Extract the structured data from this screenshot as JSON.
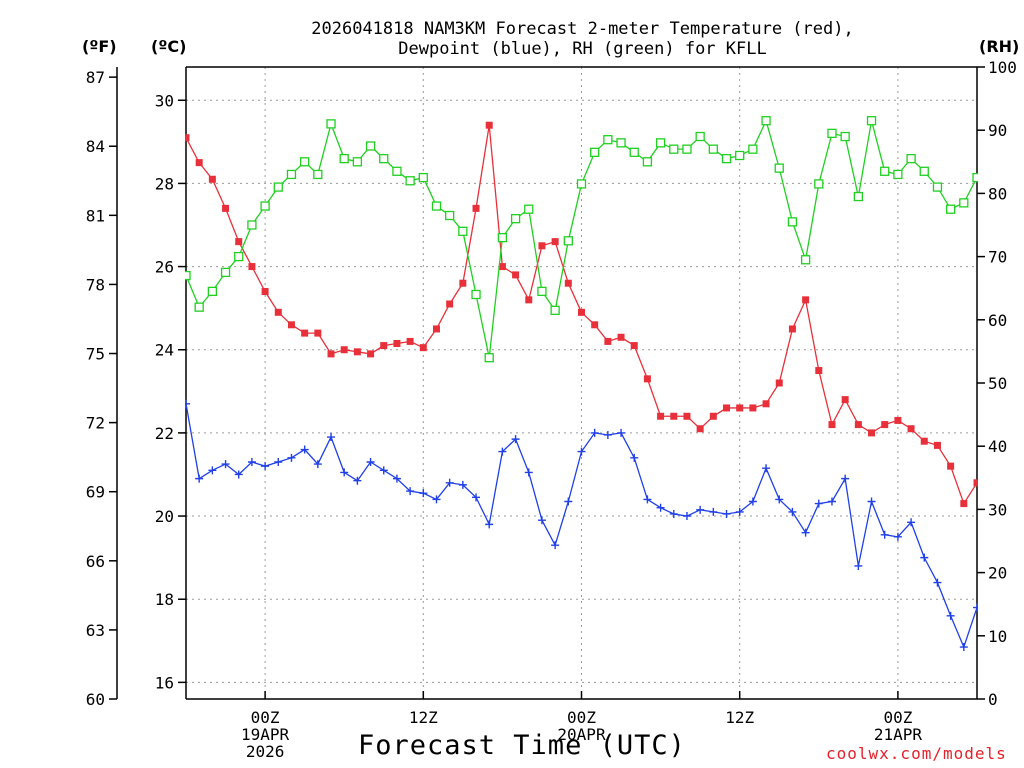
{
  "title": {
    "line1": "2026041818 NAM3KM Forecast 2-meter Temperature (red),",
    "line2": "Dewpoint (blue), RH (green) for KFLL"
  },
  "units": {
    "fahrenheit": "(ºF)",
    "celsius": "(ºC)",
    "rh": "(RH)"
  },
  "xlabel": "Forecast Time (UTC)",
  "credit": "coolwx.com/models",
  "chart_data": {
    "type": "line",
    "title": "2026041818 NAM3KM Forecast 2-meter Temperature (red), Dewpoint (blue), RH (green) for KFLL",
    "xlabel": "Forecast Time (UTC)",
    "x_unit": "hours since 2026-04-18 18Z",
    "xlim": [
      0,
      60
    ],
    "x": [
      0,
      1,
      2,
      3,
      4,
      5,
      6,
      7,
      8,
      9,
      10,
      11,
      12,
      13,
      14,
      15,
      16,
      17,
      18,
      19,
      20,
      21,
      22,
      23,
      24,
      25,
      26,
      27,
      28,
      29,
      30,
      31,
      32,
      33,
      34,
      35,
      36,
      37,
      38,
      39,
      40,
      41,
      42,
      43,
      44,
      45,
      46,
      47,
      48,
      49,
      50,
      51,
      52,
      53,
      54,
      55,
      56,
      57,
      58,
      59,
      60
    ],
    "x_ticks": [
      {
        "x": 6,
        "lines": [
          "00Z",
          "19APR",
          "2026"
        ]
      },
      {
        "x": 18,
        "lines": [
          "12Z"
        ]
      },
      {
        "x": 30,
        "lines": [
          "00Z",
          "20APR"
        ]
      },
      {
        "x": 42,
        "lines": [
          "12Z"
        ]
      },
      {
        "x": 54,
        "lines": [
          "00Z",
          "21APR"
        ]
      }
    ],
    "y_left_celsius": {
      "range": [
        15.6,
        30.8
      ],
      "ticks": [
        16,
        18,
        20,
        22,
        24,
        26,
        28,
        30
      ]
    },
    "y_left_fahrenheit": {
      "range": [
        60,
        87.44
      ],
      "ticks": [
        60,
        63,
        66,
        69,
        72,
        75,
        78,
        81,
        84,
        87
      ]
    },
    "y_right_rh": {
      "range": [
        0,
        100
      ],
      "ticks": [
        0,
        10,
        20,
        30,
        40,
        50,
        60,
        70,
        80,
        90,
        100
      ]
    },
    "grid": true,
    "series": [
      {
        "name": "2-meter Temperature",
        "color": "#e8303a",
        "axis": "celsius",
        "marker": "filled-square",
        "values": [
          29.1,
          28.5,
          28.1,
          27.4,
          26.6,
          26.0,
          25.4,
          24.9,
          24.6,
          24.4,
          24.4,
          23.9,
          24.0,
          23.95,
          23.9,
          24.1,
          24.15,
          24.2,
          24.05,
          24.5,
          25.1,
          25.6,
          27.4,
          29.4,
          26.0,
          25.8,
          25.2,
          26.5,
          26.6,
          25.6,
          24.9,
          24.6,
          24.2,
          24.3,
          24.1,
          23.3,
          22.4,
          22.4,
          22.4,
          22.1,
          22.4,
          22.6,
          22.6,
          22.6,
          22.7,
          23.2,
          24.5,
          25.2,
          23.5,
          22.2,
          22.8,
          22.2,
          22.0,
          22.2,
          22.3,
          22.1,
          21.8,
          21.7,
          21.2,
          20.3,
          20.8
        ]
      },
      {
        "name": "Dewpoint",
        "color": "#2040e8",
        "axis": "celsius",
        "marker": "plus",
        "values": [
          22.7,
          20.9,
          21.1,
          21.25,
          21.0,
          21.3,
          21.2,
          21.3,
          21.4,
          21.6,
          21.25,
          21.9,
          21.05,
          20.85,
          21.3,
          21.1,
          20.9,
          20.6,
          20.55,
          20.4,
          20.8,
          20.75,
          20.45,
          19.8,
          21.55,
          21.85,
          21.05,
          19.9,
          19.3,
          20.35,
          21.55,
          22.0,
          21.95,
          22.0,
          21.4,
          20.4,
          20.2,
          20.05,
          20.0,
          20.15,
          20.1,
          20.05,
          20.1,
          20.35,
          21.15,
          20.4,
          20.1,
          19.6,
          20.3,
          20.35,
          20.9,
          18.8,
          20.35,
          19.55,
          19.5,
          19.85,
          19.0,
          18.4,
          17.6,
          16.85,
          17.8
        ]
      },
      {
        "name": "RH",
        "color": "#20d020",
        "axis": "rh",
        "marker": "open-square",
        "values": [
          67,
          62,
          64.5,
          67.5,
          70,
          75,
          78,
          81,
          83,
          85,
          83,
          91,
          85.5,
          85,
          87.5,
          85.5,
          83.5,
          82,
          82.5,
          78,
          76.5,
          74,
          64,
          54,
          73,
          76,
          77.5,
          64.5,
          61.5,
          72.5,
          81.5,
          86.5,
          88.5,
          88,
          86.5,
          85,
          88,
          87,
          87,
          89,
          87,
          85.5,
          86,
          87,
          91.5,
          84,
          75.5,
          69.5,
          81.5,
          89.5,
          89,
          79.5,
          91.5,
          83.5,
          83,
          85.5,
          83.5,
          81,
          77.5,
          78.5,
          82.5
        ]
      }
    ]
  }
}
